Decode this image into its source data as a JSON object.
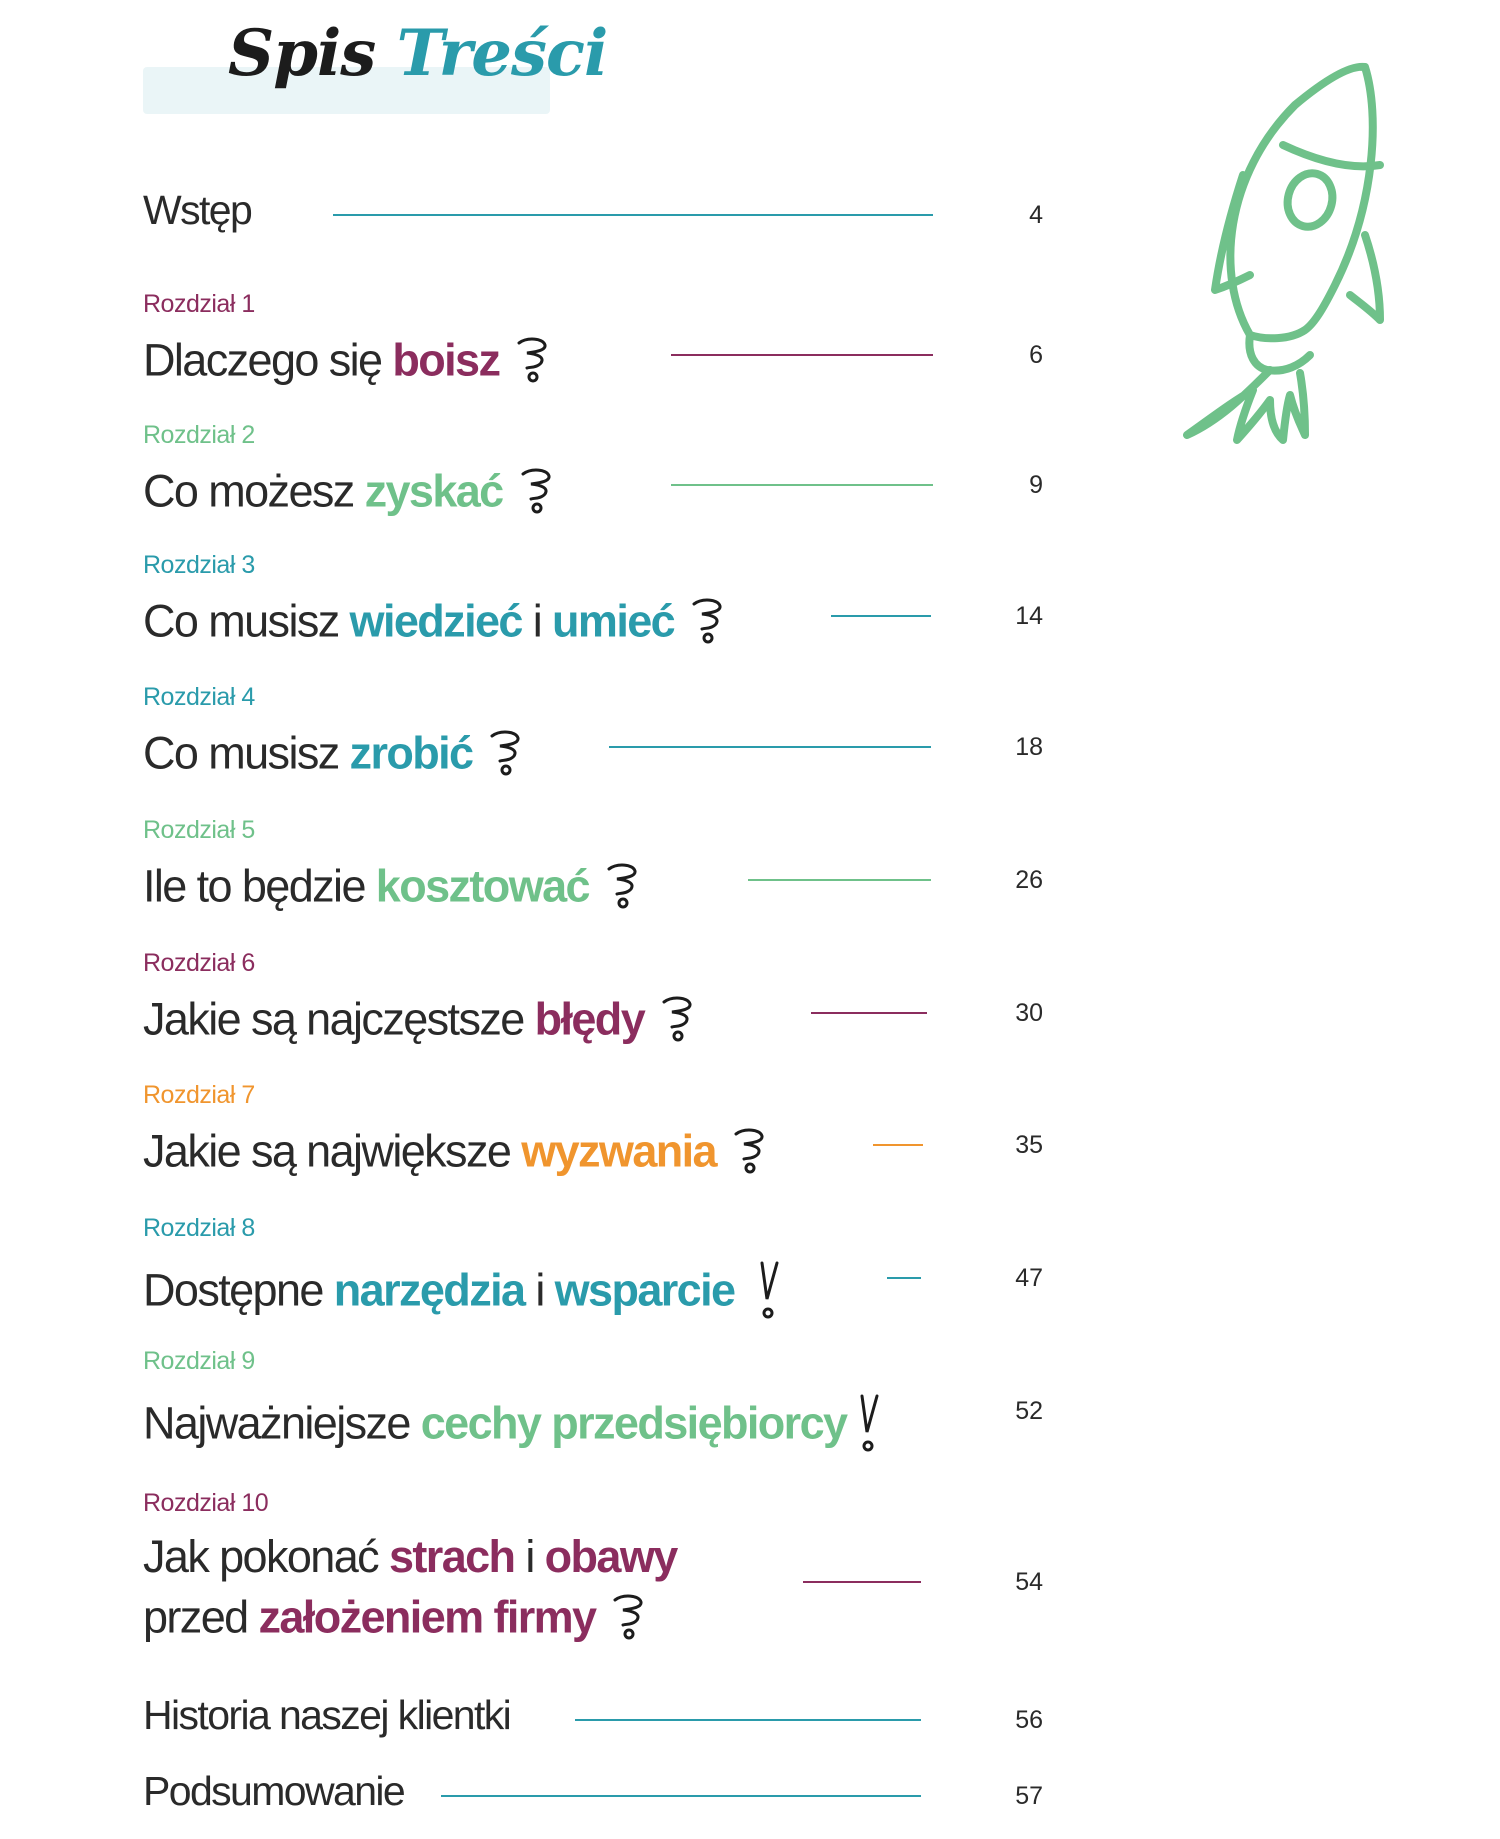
{
  "header": {
    "title_part1": "Spis",
    "title_part2": "Treści"
  },
  "colors": {
    "purple": "#8b2d5e",
    "green": "#6fc18a",
    "teal": "#2a9bab",
    "orange": "#f0952e",
    "dark": "#2a2a2a"
  },
  "toc": {
    "intro": {
      "title": "Wstęp",
      "page": "4"
    },
    "ch1": {
      "label": "Rozdział 1",
      "t1": "Dlaczego się ",
      "t2": "boisz",
      "page": "6"
    },
    "ch2": {
      "label": "Rozdział 2",
      "t1": "Co możesz ",
      "t2": "zyskać",
      "page": "9"
    },
    "ch3": {
      "label": "Rozdział 3",
      "t1": "Co musisz ",
      "t2": "wiedzieć",
      "t3": " i ",
      "t4": "umieć",
      "page": "14"
    },
    "ch4": {
      "label": "Rozdział 4",
      "t1": "Co musisz ",
      "t2": "zrobić",
      "page": "18"
    },
    "ch5": {
      "label": "Rozdział 5",
      "t1": "Ile to będzie ",
      "t2": "kosztować",
      "page": "26"
    },
    "ch6": {
      "label": "Rozdział 6",
      "t1": "Jakie są najczęstsze ",
      "t2": "błędy",
      "page": "30"
    },
    "ch7": {
      "label": "Rozdział 7",
      "t1": "Jakie są największe ",
      "t2": "wyzwania",
      "page": "35"
    },
    "ch8": {
      "label": "Rozdział 8",
      "t1": "Dostępne ",
      "t2": "narzędzia",
      "t3": " i ",
      "t4": "wsparcie",
      "page": "47"
    },
    "ch9": {
      "label": "Rozdział 9",
      "t1": "Najważniejsze ",
      "t2": "cechy przedsiębiorcy",
      "page": "52"
    },
    "ch10": {
      "label": "Rozdział 10",
      "t1": "Jak pokonać ",
      "t2": "strach",
      "t3": " i ",
      "t4": "obawy",
      "t5": "przed ",
      "t6": "założeniem firmy",
      "page": "54"
    },
    "story": {
      "title": "Historia naszej klientki",
      "page": "56"
    },
    "summary": {
      "title": "Podsumowanie",
      "page": "57"
    }
  },
  "icons": {
    "question": "question-mark-icon",
    "exclaim": "exclamation-mark-icon",
    "rocket": "rocket-icon"
  }
}
